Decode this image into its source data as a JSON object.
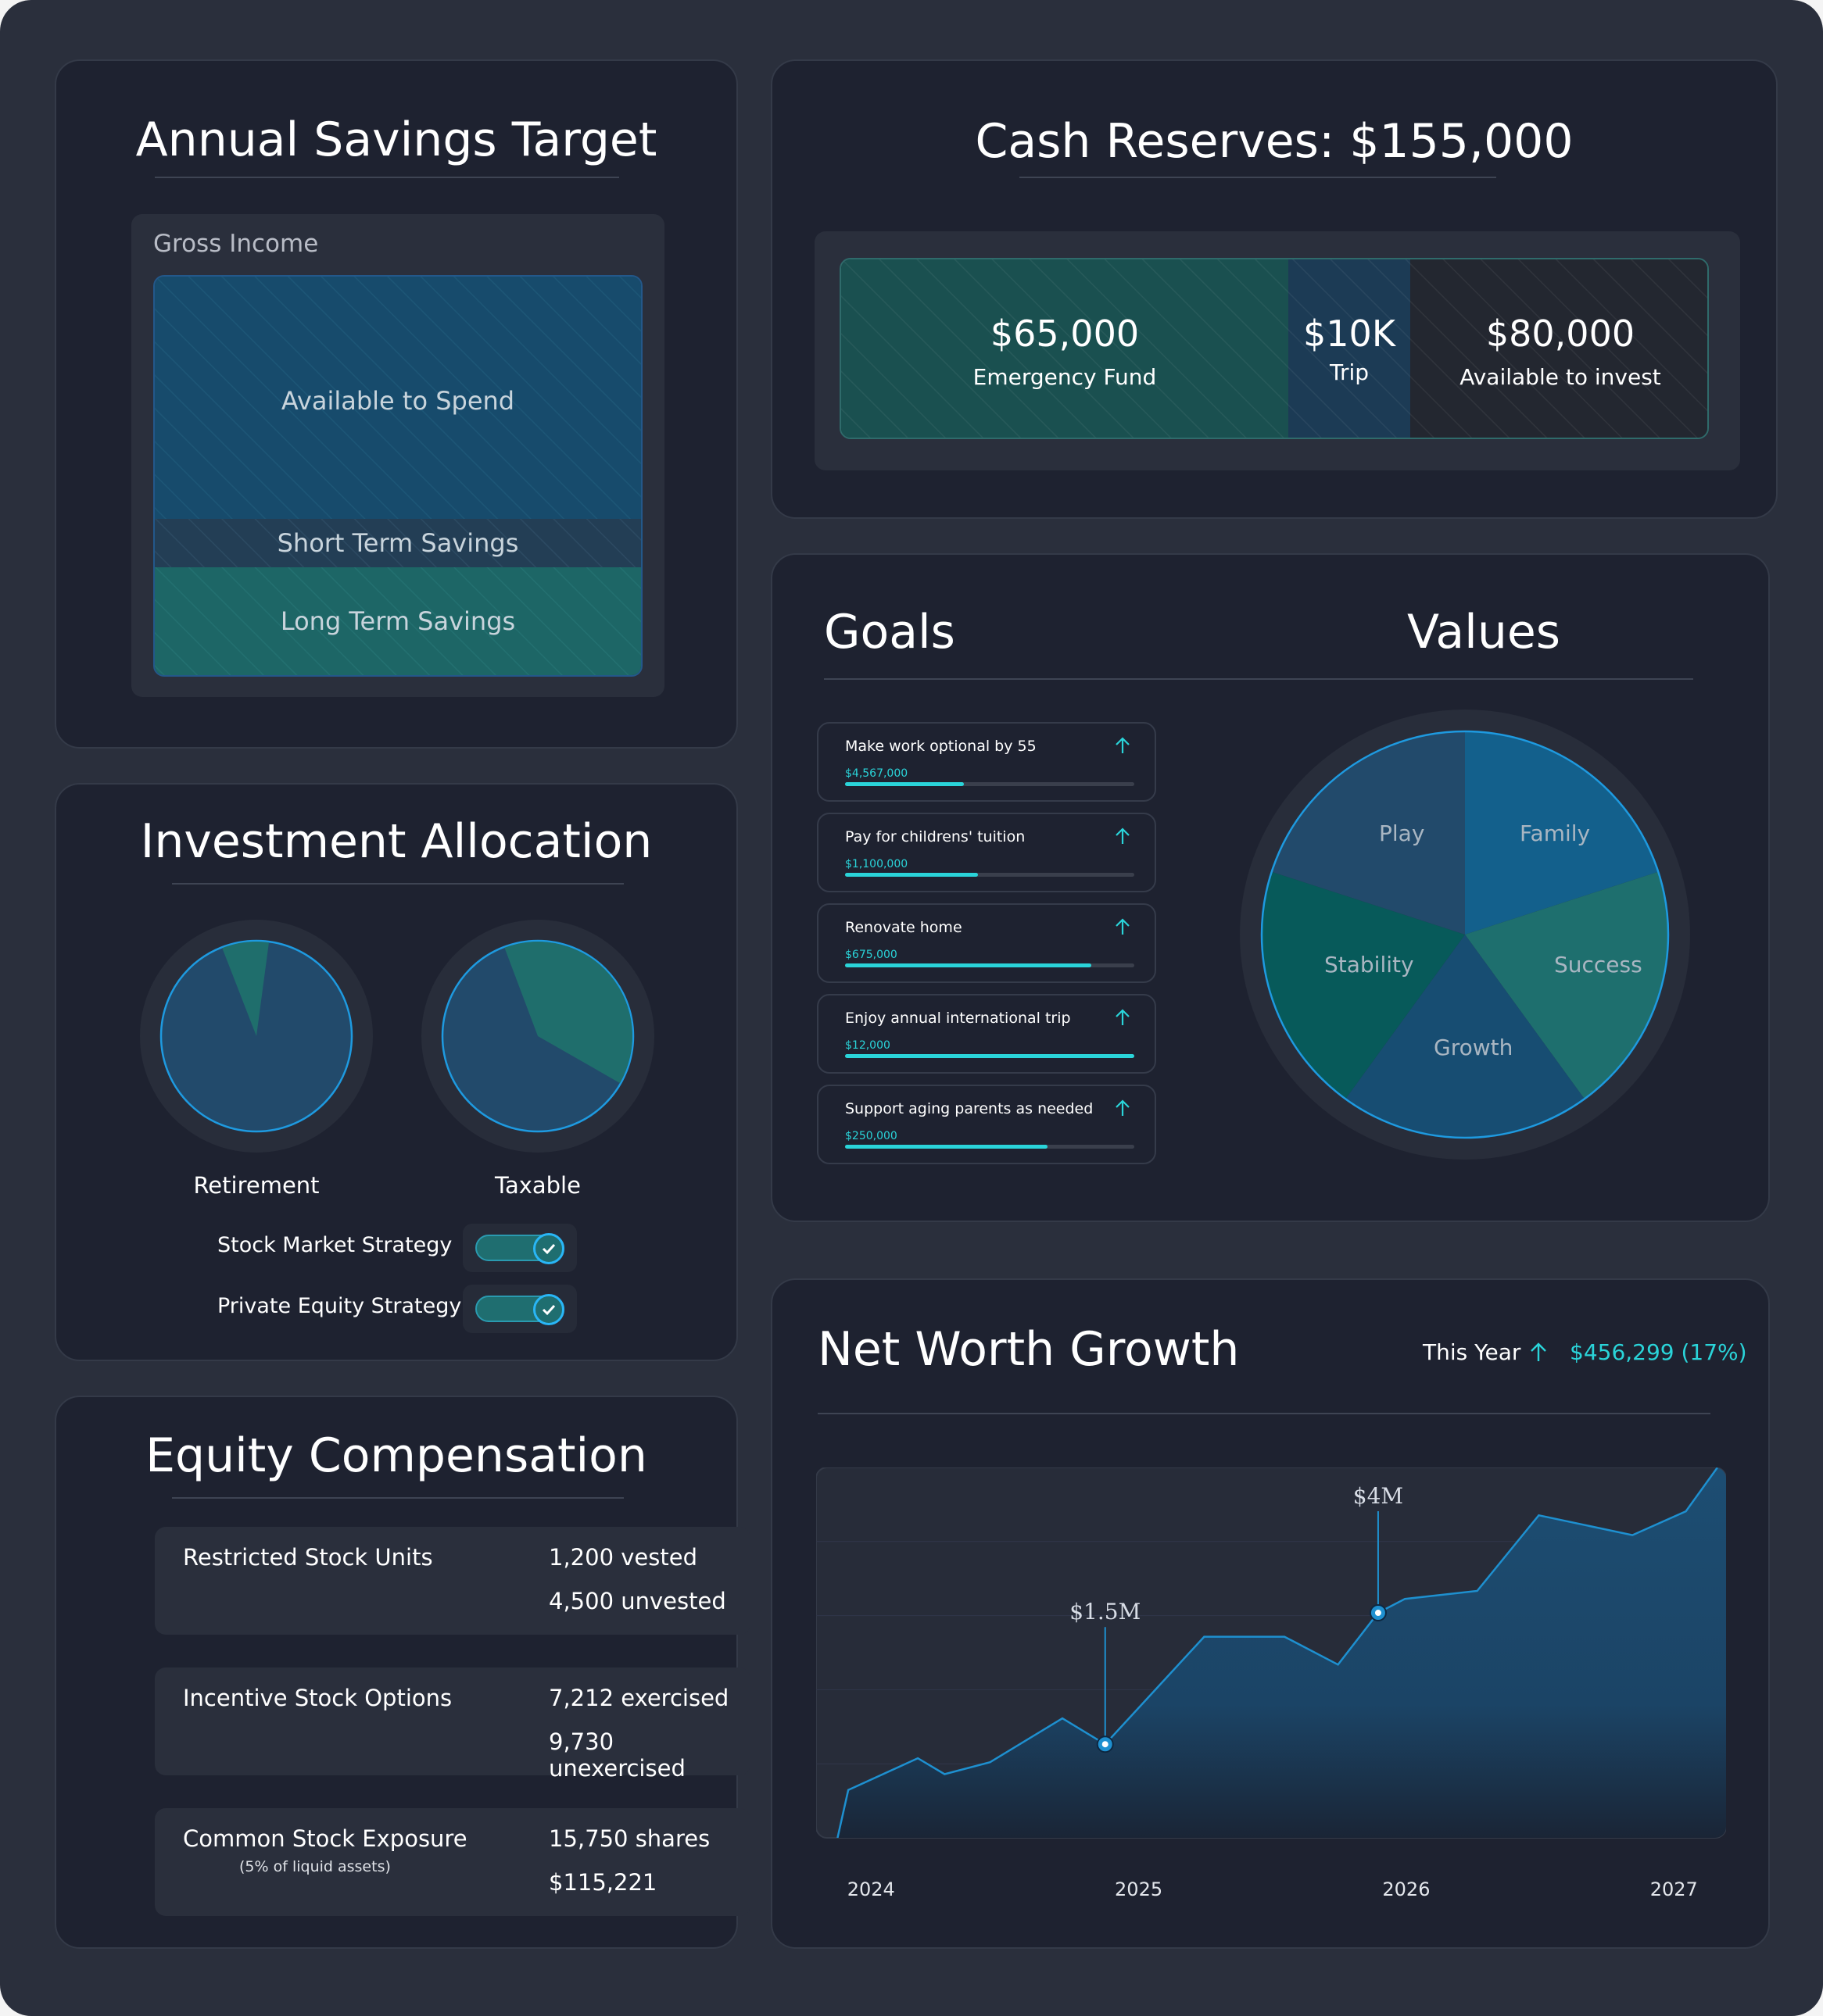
{
  "colors": {
    "background": "#2a2f3c",
    "card": "#1e2230",
    "accent_teal": "#2ad4d9",
    "blue": "#14557f",
    "teal": "#1f7a72",
    "chart_line": "#1e90d0"
  },
  "savings": {
    "title": "Annual Savings Target",
    "gross_income": "Gross Income",
    "available": "Available to Spend",
    "short_term": "Short Term Savings",
    "long_term": "Long Term Savings"
  },
  "cash": {
    "title": "Cash Reserves: $155,000",
    "segments": [
      {
        "amount": "$65,000",
        "label": "Emergency Fund"
      },
      {
        "amount": "$10K",
        "label": "Trip"
      },
      {
        "amount": "$80,000",
        "label": "Available to invest"
      }
    ]
  },
  "allocation": {
    "title": "Investment Allocation",
    "pies": [
      {
        "label": "Retirement",
        "teal_fraction": 0.08
      },
      {
        "label": "Taxable",
        "teal_fraction": 0.39
      }
    ],
    "toggles": [
      {
        "label": "Stock Market Strategy",
        "on": true
      },
      {
        "label": "Private Equity Strategy",
        "on": true
      }
    ],
    "check_icon": "check-icon"
  },
  "goals": {
    "title": "Goals",
    "arrow_icon": "arrow-up-icon",
    "items": [
      {
        "label": "Make work optional by 55",
        "value": "$4,567,000",
        "progress": 0.41
      },
      {
        "label": "Pay for childrens' tuition",
        "value": "$1,100,000",
        "progress": 0.46
      },
      {
        "label": "Renovate home",
        "value": "$675,000",
        "progress": 0.85
      },
      {
        "label": "Enjoy annual international trip",
        "value": "$12,000",
        "progress": 1.0
      },
      {
        "label": "Support aging parents as needed",
        "value": "$250,000",
        "progress": 0.7
      }
    ]
  },
  "values": {
    "title": "Values",
    "slices": [
      {
        "label": "Family",
        "color": "#13608c"
      },
      {
        "label": "Success",
        "color": "#1e6f6e"
      },
      {
        "label": "Growth",
        "color": "#174d72"
      },
      {
        "label": "Stability",
        "color": "#075a5a"
      },
      {
        "label": "Play",
        "color": "#224a6b"
      }
    ]
  },
  "equity": {
    "title": "Equity Compensation",
    "rows": [
      {
        "label": "Restricted Stock Units",
        "sublabel": "",
        "v1": "1,200 vested",
        "v2": "4,500 unvested"
      },
      {
        "label": "Incentive Stock Options",
        "sublabel": "",
        "v1": "7,212 exercised",
        "v2": "9,730 unexercised"
      },
      {
        "label": "Common Stock Exposure",
        "sublabel": "(5% of liquid assets)",
        "v1": "15,750 shares",
        "v2": "$115,221"
      }
    ]
  },
  "networth": {
    "title": "Net Worth Growth",
    "period_label": "This Year",
    "change": "$456,299 (17%)",
    "arrow_icon": "arrow-up-icon"
  },
  "chart_data": {
    "type": "area",
    "x_ticks": [
      "2024",
      "2025",
      "2026",
      "2027"
    ],
    "x_range": [
      2023.9,
      2027.3
    ],
    "y_range": [
      0,
      9.3
    ],
    "points": [
      [
        2023.98,
        0.0
      ],
      [
        2024.02,
        1.2
      ],
      [
        2024.28,
        2.0
      ],
      [
        2024.38,
        1.6
      ],
      [
        2024.55,
        1.9
      ],
      [
        2024.82,
        3.0
      ],
      [
        2024.98,
        2.35
      ],
      [
        2025.35,
        5.05
      ],
      [
        2025.65,
        5.05
      ],
      [
        2025.85,
        4.35
      ],
      [
        2026.0,
        5.65
      ],
      [
        2026.1,
        6.0
      ],
      [
        2026.37,
        6.2
      ],
      [
        2026.6,
        8.1
      ],
      [
        2026.95,
        7.6
      ],
      [
        2027.15,
        8.2
      ],
      [
        2027.3,
        9.6
      ]
    ],
    "annotations": [
      {
        "label": "$1.5M",
        "x": 2024.98,
        "y": 2.35
      },
      {
        "label": "$4M",
        "x": 2026.0,
        "y": 5.65
      }
    ],
    "grid": true
  }
}
